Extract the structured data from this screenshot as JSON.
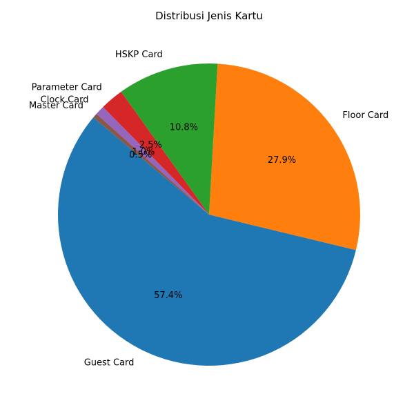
{
  "chart_data": {
    "type": "pie",
    "title": "Distribusi Jenis Kartu",
    "start_angle_deg": 140,
    "direction": "counterclockwise",
    "slices": [
      {
        "label": "Guest Card",
        "value": 57.4,
        "pct_label": "57.4%",
        "color": "#1f77b4"
      },
      {
        "label": "Floor Card",
        "value": 27.9,
        "pct_label": "27.9%",
        "color": "#ff7f0e"
      },
      {
        "label": "HSKP Card",
        "value": 10.8,
        "pct_label": "10.8%",
        "color": "#2ca02c"
      },
      {
        "label": "Parameter Card",
        "value": 2.5,
        "pct_label": "2.5%",
        "color": "#d62728"
      },
      {
        "label": "Clock Card",
        "value": 1.0,
        "pct_label": "1.0%",
        "color": "#9467bd"
      },
      {
        "label": "Master Card",
        "value": 0.5,
        "pct_label": "0.5%",
        "color": "#8c564b"
      }
    ]
  }
}
